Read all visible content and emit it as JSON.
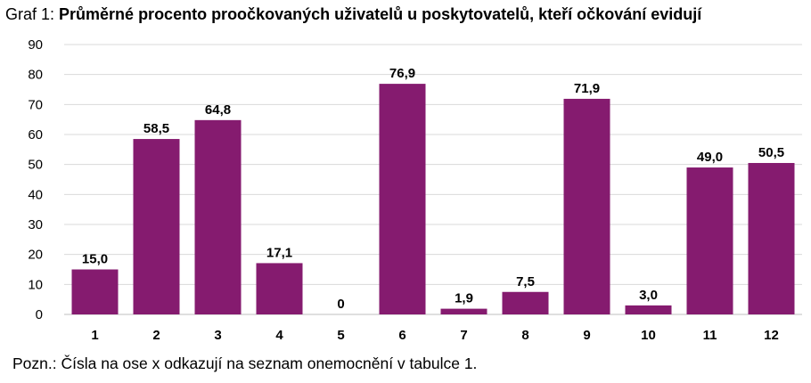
{
  "title_prefix": "Graf 1: ",
  "title": "Průměrné procento proočkovaných uživatelů u poskytovatelů, kteří očkování evidují",
  "note": "Pozn.: Čísla na ose x odkazují na seznam onemocnění v tabulce 1.",
  "colors": {
    "bar": "#851b6f",
    "grid": "#d9d9d9",
    "axis": "#bfbfbf"
  },
  "chart_data": {
    "type": "bar",
    "categories": [
      "1",
      "2",
      "3",
      "4",
      "5",
      "6",
      "7",
      "8",
      "9",
      "10",
      "11",
      "12"
    ],
    "values": [
      15.0,
      58.5,
      64.8,
      17.1,
      0,
      76.9,
      1.9,
      7.5,
      71.9,
      3.0,
      49.0,
      50.5
    ],
    "data_labels": [
      "15,0",
      "58,5",
      "64,8",
      "17,1",
      "0",
      "76,9",
      "1,9",
      "7,5",
      "71,9",
      "3,0",
      "49,0",
      "50,5"
    ],
    "yticks": [
      "0",
      "10",
      "20",
      "30",
      "40",
      "50",
      "60",
      "70",
      "80",
      "90"
    ],
    "ylim": [
      0,
      90
    ],
    "grid": true,
    "legend": false
  }
}
